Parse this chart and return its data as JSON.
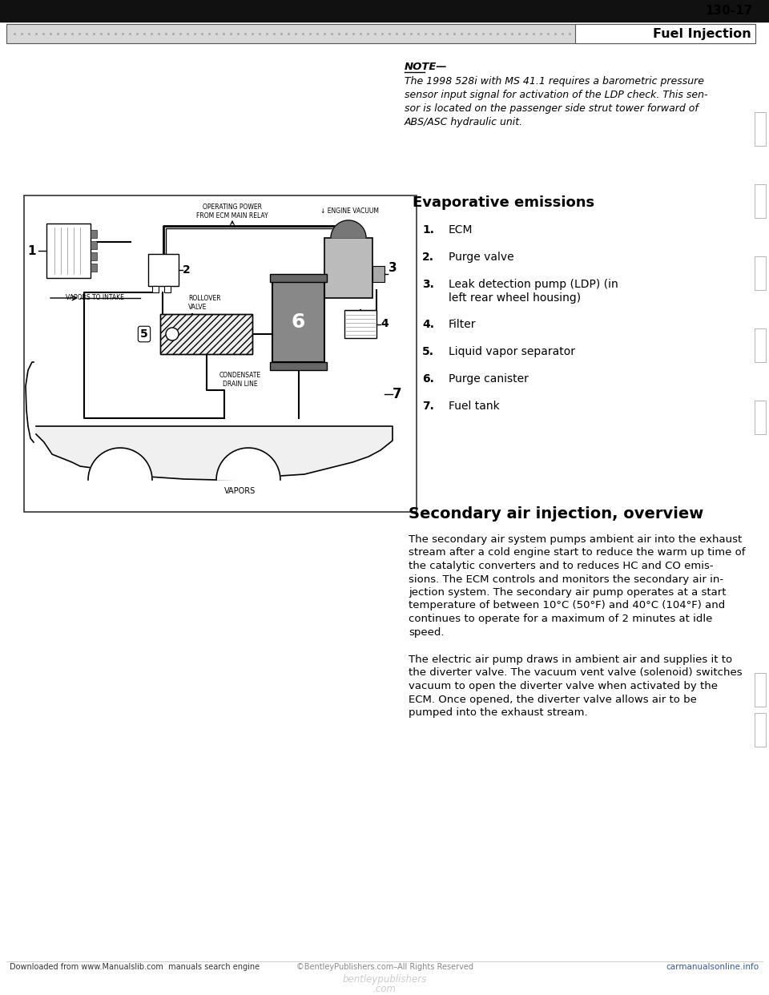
{
  "page_number": "130-17",
  "section_title": "Fuel Injection",
  "background_color": "#ffffff",
  "note_label": "NOTE—",
  "note_line1": "The 1998 528i with MS 41.1 requires a barometric pressure",
  "note_line2": "sensor input signal for activation of the LDP check. This sen-",
  "note_line3": "sor is located on the passenger side strut tower forward of",
  "note_line4": "ABS/ASC hydraulic unit.",
  "evap_title": "Evaporative emissions",
  "evap_items": [
    {
      "num": "1.",
      "text": "ECM"
    },
    {
      "num": "2.",
      "text": "Purge valve"
    },
    {
      "num": "3.",
      "text": "Leak detection pump (LDP) (in\nleft rear wheel housing)"
    },
    {
      "num": "4.",
      "text": "Filter"
    },
    {
      "num": "5.",
      "text": "Liquid vapor separator"
    },
    {
      "num": "6.",
      "text": "Purge canister"
    },
    {
      "num": "7.",
      "text": "Fuel tank"
    }
  ],
  "secondary_title": "Secondary air injection, overview",
  "secondary_para1_lines": [
    "The secondary air system pumps ambient air into the exhaust",
    "stream after a cold engine start to reduce the warm up time of",
    "the catalytic converters and to reduces HC and CO emis-",
    "sions. The ECM controls and monitors the secondary air in-",
    "jection system. The secondary air pump operates at a start",
    "temperature of between 10°C (50°F) and 40°C (104°F) and",
    "continues to operate for a maximum of 2 minutes at idle",
    "speed."
  ],
  "secondary_para2_lines": [
    "The electric air pump draws in ambient air and supplies it to",
    "the diverter valve. The vacuum vent valve (solenoid) switches",
    "vacuum to open the diverter valve when activated by the",
    "ECM. Once opened, the diverter valve allows air to be",
    "pumped into the exhaust stream."
  ],
  "footer_left": "Downloaded from www.Manualslib.com  manuals search engine",
  "footer_center": "©BentleyPublishers.com–All Rights Reserved",
  "footer_watermark1": "bentleypublishers",
  "footer_watermark2": ".com",
  "footer_right": "carmanualsonline.info",
  "diagram_border_color": "#333333",
  "header_gray": "#d8d8d8"
}
